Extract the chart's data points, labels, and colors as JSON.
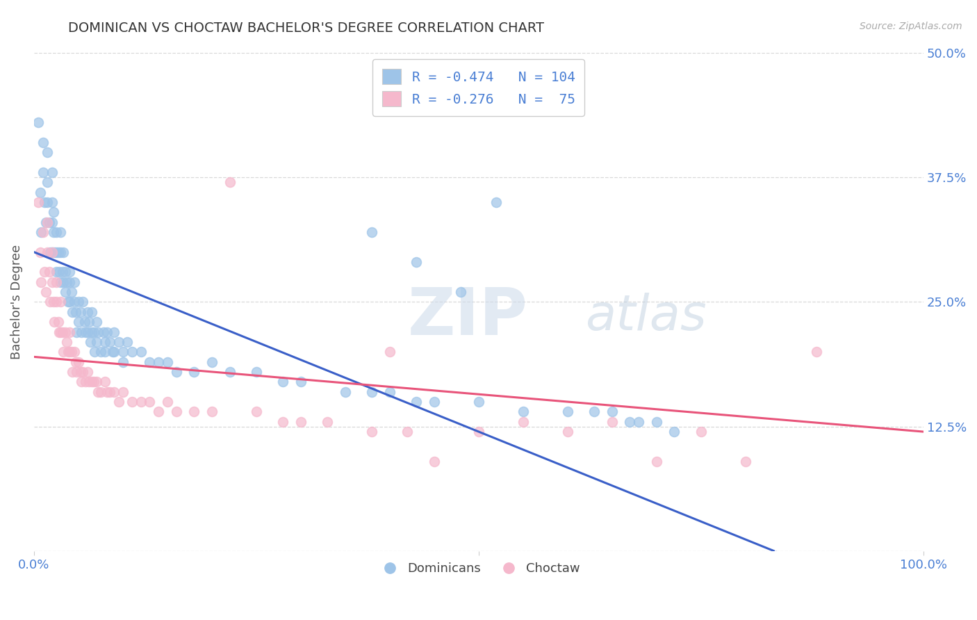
{
  "title": "DOMINICAN VS CHOCTAW BACHELOR'S DEGREE CORRELATION CHART",
  "source_text": "Source: ZipAtlas.com",
  "ylabel": "Bachelor's Degree",
  "xlim": [
    0.0,
    1.0
  ],
  "ylim": [
    0.0,
    0.5
  ],
  "yticks": [
    0.0,
    0.125,
    0.25,
    0.375,
    0.5
  ],
  "right_ytick_labels": [
    "",
    "12.5%",
    "25.0%",
    "37.5%",
    "50.0%"
  ],
  "xticks": [
    0.0,
    0.5,
    1.0
  ],
  "xtick_labels": [
    "0.0%",
    "",
    "100.0%"
  ],
  "background_color": "#ffffff",
  "grid_color": "#d8d8d8",
  "watermark_zip": "ZIP",
  "watermark_atlas": "atlas",
  "blue_color": "#9ec4e8",
  "pink_color": "#f5b8cc",
  "blue_line_color": "#3a5fc8",
  "pink_line_color": "#e8547a",
  "blue_intercept": 0.3,
  "blue_slope": -0.36,
  "pink_intercept": 0.195,
  "pink_slope": -0.075,
  "title_color": "#333333",
  "axis_label_color": "#555555",
  "tick_color": "#4a7fd4",
  "legend_label1": "R = -0.474   N = 104",
  "legend_label2": "R = -0.276   N =  75",
  "bottom_label1": "Dominicans",
  "bottom_label2": "Choctaw",
  "blue_scatter_x": [
    0.005,
    0.007,
    0.008,
    0.01,
    0.01,
    0.012,
    0.013,
    0.015,
    0.015,
    0.015,
    0.017,
    0.018,
    0.02,
    0.02,
    0.02,
    0.02,
    0.022,
    0.022,
    0.023,
    0.025,
    0.025,
    0.025,
    0.027,
    0.028,
    0.03,
    0.03,
    0.03,
    0.032,
    0.033,
    0.033,
    0.035,
    0.035,
    0.037,
    0.038,
    0.04,
    0.04,
    0.04,
    0.042,
    0.043,
    0.045,
    0.045,
    0.047,
    0.048,
    0.05,
    0.05,
    0.052,
    0.053,
    0.055,
    0.057,
    0.058,
    0.06,
    0.06,
    0.062,
    0.063,
    0.065,
    0.065,
    0.067,
    0.068,
    0.07,
    0.07,
    0.072,
    0.075,
    0.078,
    0.08,
    0.08,
    0.082,
    0.085,
    0.088,
    0.09,
    0.09,
    0.095,
    0.1,
    0.1,
    0.105,
    0.11,
    0.12,
    0.13,
    0.14,
    0.15,
    0.16,
    0.18,
    0.2,
    0.22,
    0.25,
    0.28,
    0.3,
    0.35,
    0.38,
    0.4,
    0.43,
    0.45,
    0.5,
    0.55,
    0.6,
    0.63,
    0.65,
    0.67,
    0.68,
    0.7,
    0.72,
    0.38,
    0.43,
    0.48,
    0.52
  ],
  "blue_scatter_y": [
    0.43,
    0.36,
    0.32,
    0.41,
    0.38,
    0.35,
    0.33,
    0.4,
    0.37,
    0.35,
    0.33,
    0.3,
    0.38,
    0.35,
    0.33,
    0.3,
    0.34,
    0.32,
    0.3,
    0.32,
    0.3,
    0.28,
    0.3,
    0.28,
    0.32,
    0.3,
    0.27,
    0.28,
    0.3,
    0.27,
    0.28,
    0.26,
    0.27,
    0.25,
    0.28,
    0.27,
    0.25,
    0.26,
    0.24,
    0.27,
    0.25,
    0.24,
    0.22,
    0.25,
    0.23,
    0.24,
    0.22,
    0.25,
    0.23,
    0.22,
    0.24,
    0.22,
    0.23,
    0.21,
    0.24,
    0.22,
    0.22,
    0.2,
    0.23,
    0.21,
    0.22,
    0.2,
    0.22,
    0.21,
    0.2,
    0.22,
    0.21,
    0.2,
    0.22,
    0.2,
    0.21,
    0.2,
    0.19,
    0.21,
    0.2,
    0.2,
    0.19,
    0.19,
    0.19,
    0.18,
    0.18,
    0.19,
    0.18,
    0.18,
    0.17,
    0.17,
    0.16,
    0.16,
    0.16,
    0.15,
    0.15,
    0.15,
    0.14,
    0.14,
    0.14,
    0.14,
    0.13,
    0.13,
    0.13,
    0.12,
    0.32,
    0.29,
    0.26,
    0.35
  ],
  "pink_scatter_x": [
    0.005,
    0.007,
    0.008,
    0.01,
    0.012,
    0.013,
    0.015,
    0.015,
    0.017,
    0.018,
    0.02,
    0.02,
    0.022,
    0.023,
    0.025,
    0.025,
    0.027,
    0.028,
    0.03,
    0.03,
    0.032,
    0.033,
    0.035,
    0.037,
    0.038,
    0.04,
    0.04,
    0.042,
    0.043,
    0.045,
    0.047,
    0.048,
    0.05,
    0.052,
    0.053,
    0.055,
    0.058,
    0.06,
    0.062,
    0.065,
    0.067,
    0.07,
    0.072,
    0.075,
    0.08,
    0.082,
    0.085,
    0.09,
    0.095,
    0.1,
    0.11,
    0.12,
    0.13,
    0.14,
    0.15,
    0.16,
    0.18,
    0.2,
    0.22,
    0.25,
    0.28,
    0.3,
    0.33,
    0.38,
    0.4,
    0.42,
    0.45,
    0.5,
    0.55,
    0.6,
    0.65,
    0.7,
    0.75,
    0.8,
    0.88
  ],
  "pink_scatter_y": [
    0.35,
    0.3,
    0.27,
    0.32,
    0.28,
    0.26,
    0.33,
    0.3,
    0.28,
    0.25,
    0.3,
    0.27,
    0.25,
    0.23,
    0.27,
    0.25,
    0.23,
    0.22,
    0.25,
    0.22,
    0.22,
    0.2,
    0.22,
    0.21,
    0.2,
    0.22,
    0.2,
    0.2,
    0.18,
    0.2,
    0.19,
    0.18,
    0.19,
    0.18,
    0.17,
    0.18,
    0.17,
    0.18,
    0.17,
    0.17,
    0.17,
    0.17,
    0.16,
    0.16,
    0.17,
    0.16,
    0.16,
    0.16,
    0.15,
    0.16,
    0.15,
    0.15,
    0.15,
    0.14,
    0.15,
    0.14,
    0.14,
    0.14,
    0.37,
    0.14,
    0.13,
    0.13,
    0.13,
    0.12,
    0.2,
    0.12,
    0.09,
    0.12,
    0.13,
    0.12,
    0.13,
    0.09,
    0.12,
    0.09,
    0.2
  ]
}
